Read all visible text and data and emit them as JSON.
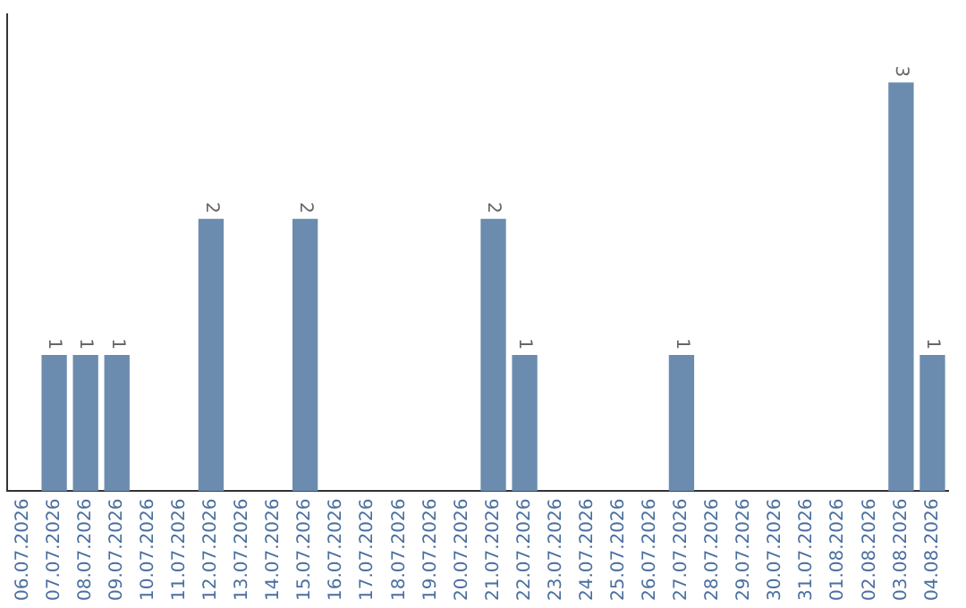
{
  "chart_data": {
    "type": "bar",
    "categories": [
      "06.07.2026",
      "07.07.2026",
      "08.07.2026",
      "09.07.2026",
      "10.07.2026",
      "11.07.2026",
      "12.07.2026",
      "13.07.2026",
      "14.07.2026",
      "15.07.2026",
      "16.07.2026",
      "17.07.2026",
      "18.07.2026",
      "19.07.2026",
      "20.07.2026",
      "21.07.2026",
      "22.07.2026",
      "23.07.2026",
      "24.07.2026",
      "25.07.2026",
      "26.07.2026",
      "27.07.2026",
      "28.07.2026",
      "29.07.2026",
      "30.07.2026",
      "31.07.2026",
      "01.08.2026",
      "02.08.2026",
      "03.08.2026",
      "04.08.2026"
    ],
    "values": [
      0,
      1,
      1,
      1,
      0,
      0,
      2,
      0,
      0,
      2,
      0,
      0,
      0,
      0,
      0,
      2,
      1,
      0,
      0,
      0,
      0,
      1,
      0,
      0,
      0,
      0,
      0,
      0,
      3,
      1
    ],
    "value_labels": [
      null,
      "1",
      "1",
      "1",
      null,
      null,
      "2",
      null,
      null,
      "2",
      null,
      null,
      null,
      null,
      null,
      "2",
      "1",
      null,
      null,
      null,
      null,
      "1",
      null,
      null,
      null,
      null,
      null,
      null,
      "3",
      "1"
    ],
    "color": "#6b8cae",
    "grid": false,
    "legend": false,
    "tick_labels": "x"
  }
}
